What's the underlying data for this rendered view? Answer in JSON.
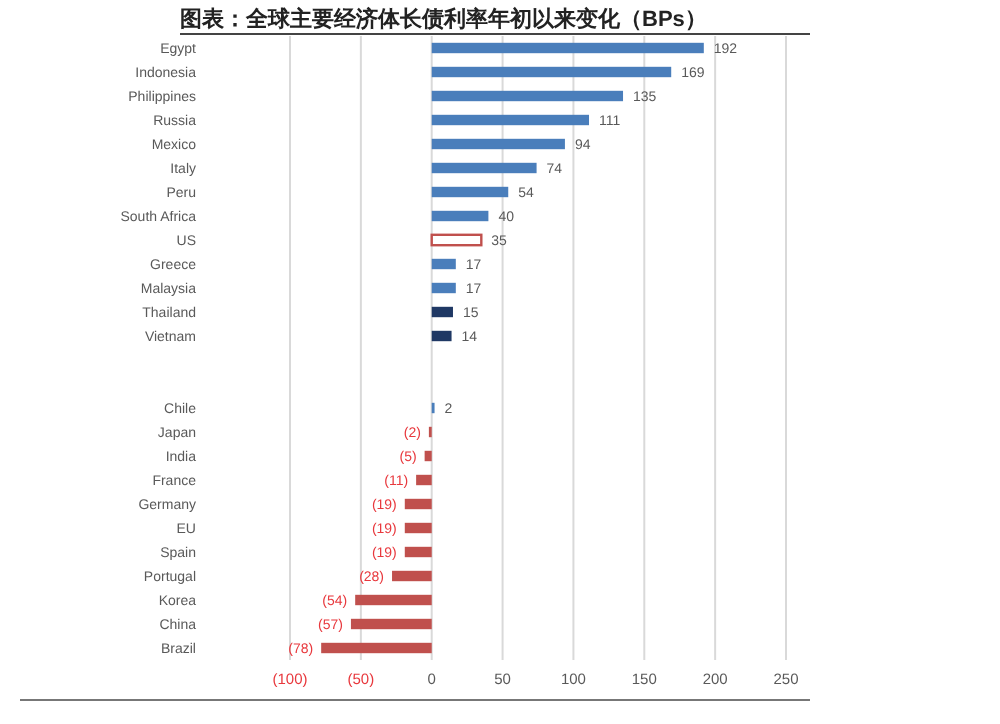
{
  "chart_data": {
    "type": "bar",
    "orientation": "horizontal",
    "title": "图表：全球主要经济体长债利率年初以来变化（BPs）",
    "categories": [
      "Egypt",
      "Indonesia",
      "Philippines",
      "Russia",
      "Mexico",
      "Italy",
      "Peru",
      "South Africa",
      "US",
      "Greece",
      "Malaysia",
      "Thailand",
      "Vietnam",
      null,
      null,
      "Chile",
      "Japan",
      "India",
      "France",
      "Germany",
      "EU",
      "Spain",
      "Portugal",
      "Korea",
      "China",
      "Brazil"
    ],
    "values": [
      192,
      169,
      135,
      111,
      94,
      74,
      54,
      40,
      35,
      17,
      17,
      15,
      14,
      null,
      null,
      2,
      -2,
      -5,
      -11,
      -19,
      -19,
      -19,
      -28,
      -54,
      -57,
      -78
    ],
    "value_labels": [
      "192",
      "169",
      "135",
      "111",
      "94",
      "74",
      "54",
      "40",
      "35",
      "17",
      "17",
      "15",
      "14",
      null,
      null,
      "2",
      "(2)",
      "(5)",
      "(11)",
      "(19)",
      "(19)",
      "(19)",
      "(28)",
      "(54)",
      "(57)",
      "(78)"
    ],
    "colors": [
      "#4a7ebb",
      "#4a7ebb",
      "#4a7ebb",
      "#4a7ebb",
      "#4a7ebb",
      "#4a7ebb",
      "#4a7ebb",
      "#4a7ebb",
      "#ffffff",
      "#4a7ebb",
      "#4a7ebb",
      "#1f3864",
      "#1f3864",
      null,
      null,
      "#4a7ebb",
      "#c0504d",
      "#c0504d",
      "#c0504d",
      "#c0504d",
      "#c0504d",
      "#c0504d",
      "#c0504d",
      "#c0504d",
      "#c0504d",
      "#c0504d"
    ],
    "xlim": [
      -100,
      250
    ],
    "xticks": [
      {
        "value": -100,
        "label": "(100)"
      },
      {
        "value": -50,
        "label": "(50)"
      },
      0,
      50,
      100,
      150,
      200,
      250
    ],
    "grid": "x"
  }
}
